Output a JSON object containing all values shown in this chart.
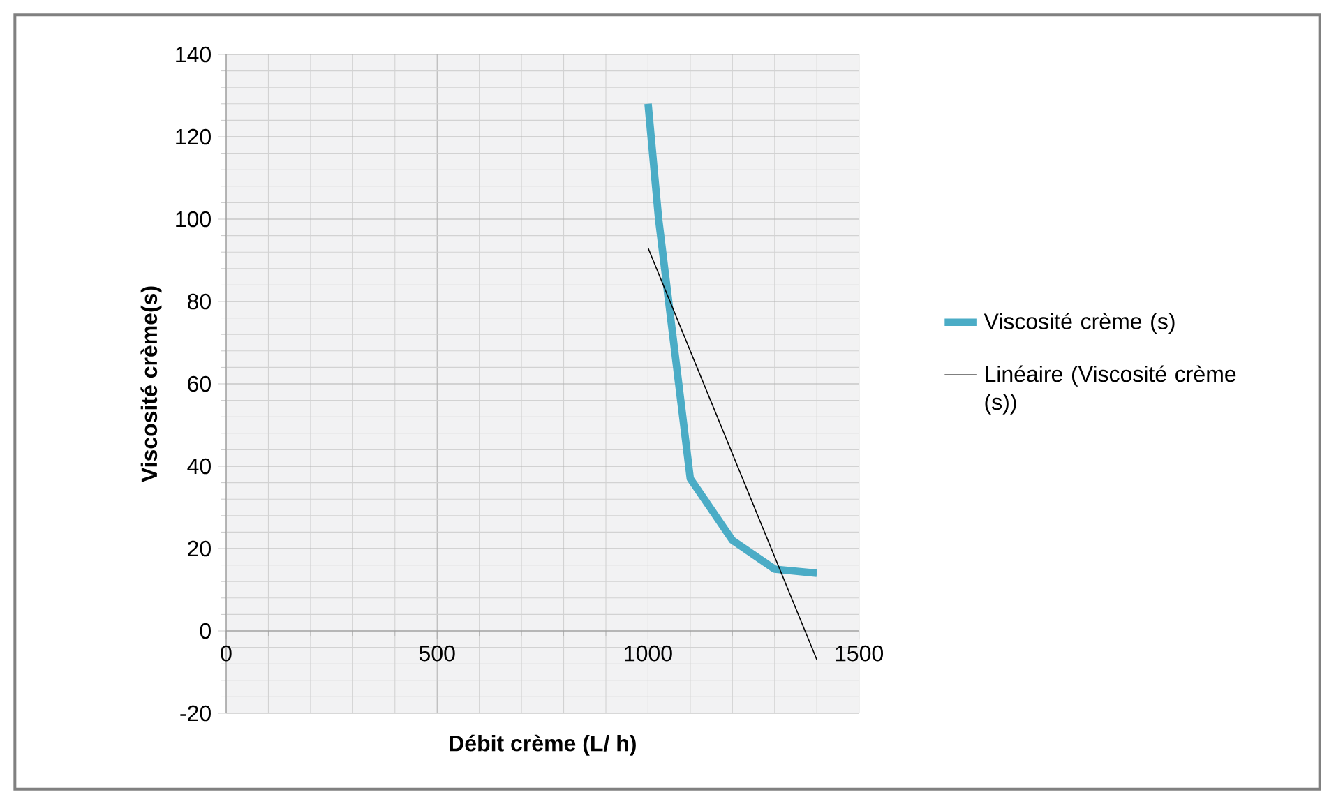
{
  "chart_data": {
    "type": "line",
    "xlabel": "Débit crème (L/ h)",
    "ylabel": "Viscosité crème(s)",
    "series": [
      {
        "name": "Viscosité crème (s)",
        "color": "#4bacc6",
        "x": [
          1000,
          1025,
          1100,
          1200,
          1300,
          1400
        ],
        "values": [
          128,
          100,
          37,
          22,
          15,
          14
        ]
      },
      {
        "name": "Linéaire (Viscosité crème (s))",
        "color": "#000000",
        "x": [
          1000,
          1400
        ],
        "values": [
          93,
          -7
        ]
      }
    ],
    "xlim": [
      0,
      1500
    ],
    "xticks": [
      0,
      500,
      1000,
      1500
    ],
    "ylim": [
      -20,
      140
    ],
    "yticks": [
      -20,
      0,
      20,
      40,
      60,
      80,
      100,
      120,
      140
    ],
    "grid": true,
    "legend": "right",
    "marker": "none",
    "line_style": "solid"
  }
}
